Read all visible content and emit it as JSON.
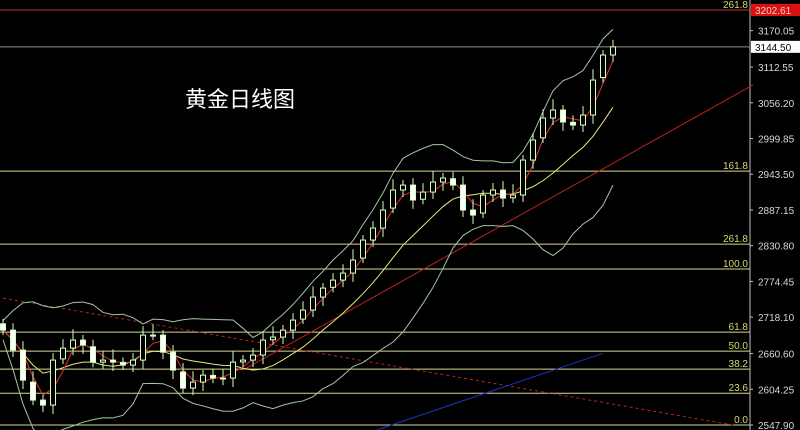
{
  "chart_data": {
    "type": "candlestick",
    "title": "黄金日线图",
    "ylim": [
      2547.9,
      3202.61
    ],
    "y_ticks": [
      "3170.05",
      "3112.55",
      "3056.20",
      "2999.85",
      "2943.50",
      "2887.15",
      "2830.80",
      "2774.45",
      "2718.10",
      "2660.60",
      "2604.25",
      "2547.90"
    ],
    "closes": [
      2697.6,
      2666.1,
      2618.7,
      2587.2,
      2579.3,
      2650.3,
      2669.2,
      2681.9,
      2674.0,
      2647.1,
      2650.3,
      2647.1,
      2642.4,
      2650.3,
      2689.7,
      2689.7,
      2662.9,
      2634.5,
      2606.1,
      2615.6,
      2626.6,
      2621.9,
      2621.9,
      2647.1,
      2650.3,
      2658.2,
      2681.9,
      2686.6,
      2697.6,
      2713.4,
      2729.2,
      2749.7,
      2763.9,
      2776.5,
      2787.6,
      2808.1,
      2839.7,
      2858.6,
      2887.0,
      2918.6,
      2926.4,
      2902.8,
      2915.4,
      2931.2,
      2937.5,
      2926.4,
      2887.0,
      2879.1,
      2910.7,
      2918.6,
      2905.9,
      2910.7,
      2965.9,
      2997.5,
      3032.2,
      3044.8,
      3025.9,
      3021.1,
      3036.9,
      3092.1,
      3131.6,
      3144.5
    ],
    "price_labels": {
      "high": "3202.61",
      "current": "3144.50"
    },
    "levels": [
      {
        "label": "261.8",
        "price": 3202.61,
        "color": "#c03030"
      },
      {
        "label": "",
        "price": 3144.5,
        "color": "#909090"
      },
      {
        "label": "161.8",
        "price": 2948.5,
        "color": "#d8d890"
      },
      {
        "label": "261.8",
        "price": 2833.3,
        "color": "#d8d890"
      },
      {
        "label": "100.0",
        "price": 2794.0,
        "color": "#d8d890"
      },
      {
        "label": "61.8",
        "price": 2694.5,
        "color": "#d8d890"
      },
      {
        "label": "50.0",
        "price": 2664.5,
        "color": "#d8d890"
      },
      {
        "label": "38.2",
        "price": 2636.0,
        "color": "#d8d890"
      },
      {
        "label": "23.6",
        "price": 2598.0,
        "color": "#d8d890"
      },
      {
        "label": "0.0",
        "price": 2547.9,
        "color": "#d8d890"
      }
    ],
    "trendlines": [
      {
        "name": "support",
        "from": [
          24,
          2634.5
        ],
        "to": [
          75,
          3084.3
        ],
        "color": "#c02020",
        "dash": false
      },
      {
        "name": "resistance",
        "from": [
          0,
          2748.1
        ],
        "to": [
          73,
          2547.9
        ],
        "color": "#c02020",
        "dash": true
      },
      {
        "name": "channel",
        "from": [
          37,
          2538
        ],
        "to": [
          60,
          2661
        ],
        "color": "#2030c0",
        "dash": false
      }
    ],
    "colors": {
      "up": "#d8ffc0",
      "down": "#ffffff",
      "ma_fast": "#e03030",
      "ma_slow": "#e8e880",
      "bands": "#a0c8a0"
    }
  }
}
